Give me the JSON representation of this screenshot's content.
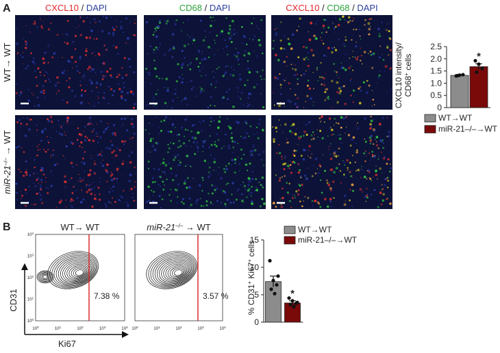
{
  "panel_a": {
    "label": "A",
    "column_headers": [
      [
        {
          "text": "CXCL10",
          "color": "#e8242a"
        },
        {
          "text": " / ",
          "color": "#222222"
        },
        {
          "text": "DAPI",
          "color": "#2b3fa0"
        }
      ],
      [
        {
          "text": "CD68",
          "color": "#2aa33a"
        },
        {
          "text": " / ",
          "color": "#222222"
        },
        {
          "text": "DAPI",
          "color": "#2b3fa0"
        }
      ],
      [
        {
          "text": "CXCL10",
          "color": "#e8242a"
        },
        {
          "text": " / ",
          "color": "#222222"
        },
        {
          "text": "CD68",
          "color": "#2aa33a"
        },
        {
          "text": " / ",
          "color": "#222222"
        },
        {
          "text": "DAPI",
          "color": "#2b3fa0"
        }
      ]
    ],
    "row_labels": [
      [
        {
          "text": "WT→ WT"
        }
      ],
      [
        {
          "text": "miR-21",
          "italic": true
        },
        {
          "text": "–/–",
          "sup": true
        },
        {
          "text": " → WT"
        }
      ]
    ]
  },
  "panel_b": {
    "label": "B",
    "flow_plots": [
      {
        "title": [
          {
            "text": "WT→ WT"
          }
        ],
        "percent": "7.38 %"
      },
      {
        "title": [
          {
            "text": "miR-21",
            "italic": true
          },
          {
            "text": "–/–",
            "sup": true
          },
          {
            "text": " → WT"
          }
        ],
        "percent": "3.57 %"
      }
    ],
    "y_label": "CD31",
    "x_label": "Ki67",
    "ticks": [
      {
        "base": "10",
        "exp": "0"
      },
      {
        "base": "10",
        "exp": "1"
      },
      {
        "base": "10",
        "exp": "2"
      },
      {
        "base": "10",
        "exp": "3"
      },
      {
        "base": "10",
        "exp": "4"
      }
    ]
  },
  "chart_data": [
    {
      "type": "bar",
      "y_label": [
        [
          {
            "text": "CXCL10 intensity/"
          }
        ],
        [
          {
            "text": "CD68"
          },
          {
            "text": "+",
            "sup": true
          },
          {
            "text": " cells"
          }
        ]
      ],
      "ylim": [
        0,
        2.5
      ],
      "yticks": [
        0,
        0.5,
        {
          "value": 1,
          "label": "1.0"
        },
        1.5,
        {
          "value": 2,
          "label": "2.0"
        },
        2.5
      ],
      "annotation": "*",
      "series": [
        {
          "name": "WT→WT",
          "color": "#8c8c8c",
          "value": 1.32,
          "error": 0.04,
          "points": [
            1.3,
            1.33,
            1.35,
            1.31
          ]
        },
        {
          "name": "miR-21–/–→WT",
          "color": "#7a0a0a",
          "value": 1.68,
          "error": 0.12,
          "points": [
            1.92,
            1.78,
            1.6,
            1.45
          ]
        }
      ]
    },
    {
      "type": "bar",
      "y_label": [
        [
          {
            "text": "% CD31"
          },
          {
            "text": "+",
            "sup": true
          },
          {
            "text": " Ki67"
          },
          {
            "text": "+",
            "sup": true
          },
          {
            "text": " cells"
          }
        ]
      ],
      "ylim": [
        0,
        15
      ],
      "yticks": [
        0,
        5,
        10,
        15
      ],
      "annotation": "*",
      "series": [
        {
          "name": "WT→WT",
          "color": "#8c8c8c",
          "value": 7.4,
          "error": 1.0,
          "points": [
            11.2,
            7.6,
            6.8,
            6.0,
            5.2,
            8.4
          ]
        },
        {
          "name": "miR-21–/–→WT",
          "color": "#7a0a0a",
          "value": 3.5,
          "error": 0.4,
          "points": [
            4.4,
            3.9,
            3.4,
            3.2,
            2.8,
            3.6
          ]
        }
      ]
    }
  ]
}
